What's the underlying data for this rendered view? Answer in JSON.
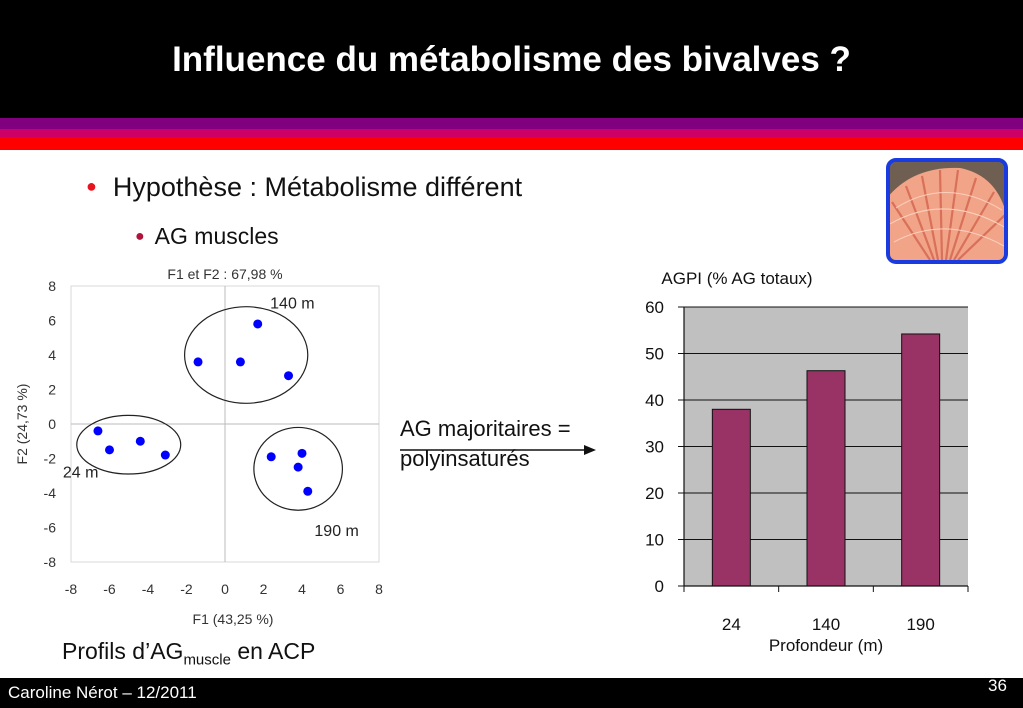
{
  "slide": {
    "title": "Influence du métabolisme des bivalves ?",
    "bullet1": "Hypothèse : Métabolisme différent",
    "bullet2": "AG muscles",
    "ag_line1": "AG majoritaires =",
    "ag_line2": "polyinsaturés",
    "caption_main": "Profils d’AG",
    "caption_sub": "muscle",
    "caption_tail": " en ACP",
    "author": "Caroline Nérot – 12/2011",
    "page_number": "36"
  },
  "colors": {
    "header": "#000000",
    "stripe_purple": "#800080",
    "stripe_red": "#ff0000",
    "point": "#0000ff",
    "bar": "#993366",
    "plot_bg": "#c0c0c0",
    "photo_border": "#1a3be0"
  },
  "icons": {
    "photo": "scallop-shell-photo-icon"
  },
  "chart_data": [
    {
      "type": "scatter",
      "title": "F1 et F2 : 67,98 %",
      "xlabel": "F1 (43,25 %)",
      "ylabel": "F2 (24,73 %)",
      "xlim": [
        -8,
        8
      ],
      "ylim": [
        -8,
        8
      ],
      "xticks": [
        "-8",
        "-6",
        "-4",
        "-2",
        "0",
        "2",
        "4",
        "6",
        "8"
      ],
      "yticks": [
        "8",
        "6",
        "4",
        "2",
        "0",
        "-2",
        "-4",
        "-6",
        "-8"
      ],
      "grid": false,
      "points": [
        {
          "x": -6.6,
          "y": -0.4
        },
        {
          "x": -6.0,
          "y": -1.5
        },
        {
          "x": -4.4,
          "y": -1.0
        },
        {
          "x": -3.1,
          "y": -1.8
        },
        {
          "x": -1.4,
          "y": 3.6
        },
        {
          "x": 0.8,
          "y": 3.6
        },
        {
          "x": 1.7,
          "y": 5.8
        },
        {
          "x": 3.3,
          "y": 2.8
        },
        {
          "x": 2.4,
          "y": -1.9
        },
        {
          "x": 4.0,
          "y": -1.7
        },
        {
          "x": 3.8,
          "y": -2.5
        },
        {
          "x": 4.3,
          "y": -3.9
        }
      ],
      "groups": [
        {
          "label": "24 m",
          "cx": -5.0,
          "cy": -1.2,
          "rx": 2.7,
          "ry": 1.7
        },
        {
          "label": "140 m",
          "cx": 1.1,
          "cy": 4.0,
          "rx": 3.2,
          "ry": 2.8
        },
        {
          "label": "190 m",
          "cx": 3.8,
          "cy": -2.6,
          "rx": 2.3,
          "ry": 2.4
        }
      ]
    },
    {
      "type": "bar",
      "title": "AGPI (% AG totaux)",
      "xlabel": "Profondeur (m)",
      "ylabel": "",
      "categories": [
        "24",
        "140",
        "190"
      ],
      "values": [
        38,
        46.3,
        54.2
      ],
      "ylim": [
        0,
        60
      ],
      "yticks": [
        "0",
        "10",
        "20",
        "30",
        "40",
        "50",
        "60"
      ],
      "grid": true
    }
  ]
}
